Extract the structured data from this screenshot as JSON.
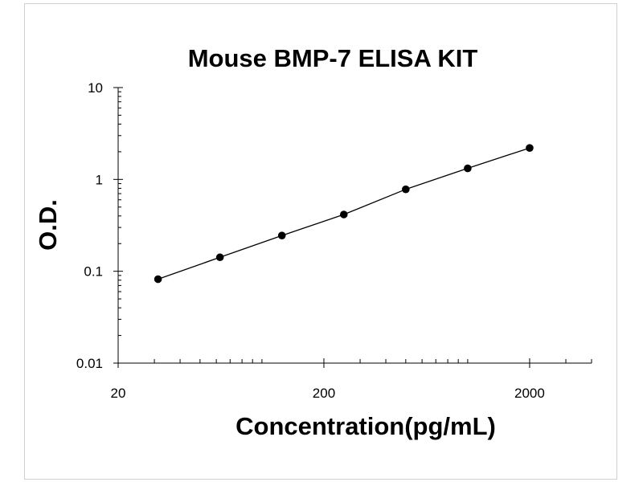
{
  "chart_data": {
    "type": "scatter",
    "title": "Mouse BMP-7 ELISA KIT",
    "xlabel": "Concentration(pg/mL)",
    "ylabel": "O.D.",
    "xscale": "log",
    "yscale": "log",
    "xlim": [
      20,
      4000
    ],
    "ylim": [
      0.01,
      10
    ],
    "xticks": [
      "20",
      "200",
      "2000"
    ],
    "yticks": [
      "10",
      "1",
      "0.1",
      "0.01"
    ],
    "grid": false,
    "legend": "none",
    "series": [
      {
        "x": [
          31.25,
          62.5,
          125,
          250,
          500,
          1000,
          2000
        ],
        "y": [
          0.082,
          0.142,
          0.245,
          0.415,
          0.78,
          1.32,
          2.2
        ]
      }
    ],
    "marker_color": "#000000",
    "line_color": "#000000"
  }
}
